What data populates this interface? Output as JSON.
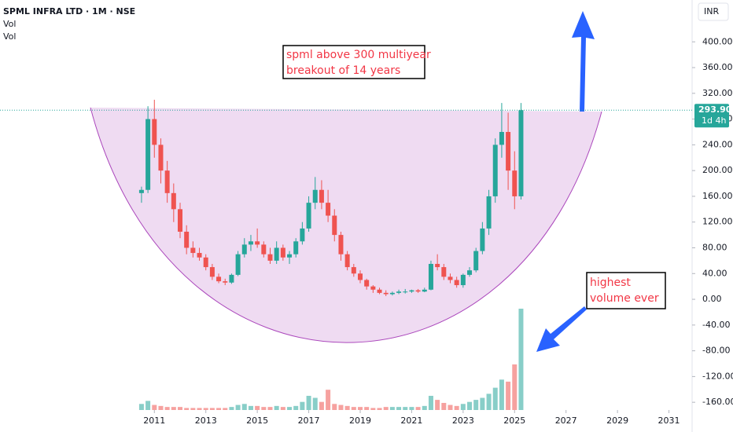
{
  "chart_data": {
    "type": "candlestick",
    "title": "SPML INFRA LTD · 1M · NSE",
    "indicators": [
      "Vol",
      "Vol"
    ],
    "currency": "INR",
    "x": [
      2010.5,
      2010.75,
      2011,
      2011.25,
      2011.5,
      2011.75,
      2012,
      2012.25,
      2012.5,
      2012.75,
      2013,
      2013.25,
      2013.5,
      2013.75,
      2014,
      2014.25,
      2014.5,
      2014.75,
      2015,
      2015.25,
      2015.5,
      2015.75,
      2016,
      2016.25,
      2016.5,
      2016.75,
      2017,
      2017.25,
      2017.5,
      2017.75,
      2018,
      2018.25,
      2018.5,
      2018.75,
      2019,
      2019.25,
      2019.5,
      2019.75,
      2020,
      2020.25,
      2020.5,
      2020.75,
      2021,
      2021.25,
      2021.5,
      2021.75,
      2022,
      2022.25,
      2022.5,
      2022.75,
      2023,
      2023.25,
      2023.5,
      2023.75,
      2024,
      2024.25,
      2024.5,
      2024.75,
      2025,
      2025.25
    ],
    "open": [
      165,
      170,
      280,
      240,
      200,
      165,
      140,
      105,
      80,
      72,
      65,
      50,
      35,
      28,
      26,
      38,
      70,
      85,
      90,
      85,
      70,
      60,
      80,
      65,
      70,
      90,
      110,
      150,
      170,
      150,
      130,
      100,
      70,
      50,
      40,
      30,
      20,
      15,
      10,
      8,
      10,
      12,
      12,
      14,
      12,
      15,
      55,
      50,
      35,
      30,
      22,
      38,
      45,
      75,
      110,
      160,
      240,
      260,
      200,
      160
    ],
    "high": [
      175,
      300,
      310,
      250,
      215,
      180,
      150,
      115,
      90,
      80,
      70,
      55,
      40,
      32,
      40,
      75,
      95,
      100,
      110,
      90,
      80,
      90,
      85,
      75,
      95,
      120,
      160,
      190,
      185,
      170,
      140,
      105,
      75,
      55,
      45,
      32,
      22,
      18,
      14,
      12,
      15,
      16,
      15,
      16,
      18,
      60,
      70,
      55,
      40,
      35,
      40,
      50,
      80,
      120,
      170,
      250,
      305,
      290,
      230,
      305
    ],
    "low": [
      150,
      165,
      220,
      180,
      150,
      120,
      95,
      70,
      65,
      60,
      45,
      30,
      25,
      22,
      24,
      36,
      65,
      75,
      80,
      65,
      55,
      55,
      60,
      55,
      65,
      85,
      105,
      140,
      140,
      120,
      90,
      60,
      45,
      35,
      25,
      15,
      10,
      8,
      5,
      6,
      8,
      9,
      10,
      10,
      11,
      14,
      45,
      30,
      25,
      18,
      18,
      35,
      42,
      70,
      100,
      150,
      220,
      170,
      140,
      155
    ],
    "close": [
      170,
      280,
      240,
      200,
      165,
      140,
      105,
      80,
      72,
      65,
      50,
      35,
      28,
      26,
      38,
      70,
      85,
      90,
      85,
      70,
      60,
      80,
      65,
      70,
      90,
      110,
      150,
      170,
      150,
      130,
      100,
      70,
      50,
      40,
      30,
      20,
      15,
      10,
      8,
      10,
      12,
      12,
      14,
      12,
      15,
      55,
      50,
      35,
      30,
      22,
      38,
      45,
      75,
      110,
      160,
      240,
      260,
      200,
      160,
      293.9
    ],
    "volume": [
      6,
      9,
      5,
      4,
      3,
      3,
      3,
      2,
      2,
      2,
      2,
      2,
      2,
      2,
      3,
      5,
      6,
      4,
      4,
      3,
      3,
      4,
      3,
      3,
      4,
      8,
      14,
      12,
      8,
      20,
      6,
      5,
      4,
      3,
      3,
      3,
      2,
      2,
      3,
      3,
      3,
      3,
      3,
      3,
      4,
      14,
      10,
      7,
      5,
      4,
      6,
      8,
      10,
      12,
      16,
      22,
      30,
      28,
      45,
      100
    ],
    "up_color": "#26a69a",
    "down_color": "#ef5350",
    "xlim": [
      2005,
      2031.9
    ],
    "xticks": [
      2011,
      2013,
      2015,
      2017,
      2019,
      2021,
      2023,
      2025,
      2027,
      2029,
      2031
    ],
    "ylim": [
      -172,
      465
    ],
    "yticks": [
      {
        "value": 400,
        "label": "400.00"
      },
      {
        "value": 360,
        "label": "360.00"
      },
      {
        "value": 320,
        "label": "320.00"
      },
      {
        "value": 280,
        "label": "280.00"
      },
      {
        "value": 240,
        "label": "240.00"
      },
      {
        "value": 200,
        "label": "200.00"
      },
      {
        "value": 160,
        "label": "160.00"
      },
      {
        "value": 120,
        "label": "120.00"
      },
      {
        "value": 80,
        "label": "80.00"
      },
      {
        "value": 40,
        "label": "40.00"
      },
      {
        "value": 0,
        "label": "0.00"
      },
      {
        "value": -40,
        "label": "-40.00"
      },
      {
        "value": -80,
        "label": "-80.00"
      },
      {
        "value": -120,
        "label": "-120.00"
      },
      {
        "value": -160,
        "label": "-160.00"
      }
    ],
    "last_price": {
      "value": 293.9,
      "label": "293.90"
    },
    "countdown": "1d 4h",
    "annotations": [
      {
        "lines": [
          "spml above 300 multiyear",
          "breakout of 14 years"
        ]
      },
      {
        "lines": [
          "highest",
          "volume ever"
        ]
      }
    ]
  }
}
